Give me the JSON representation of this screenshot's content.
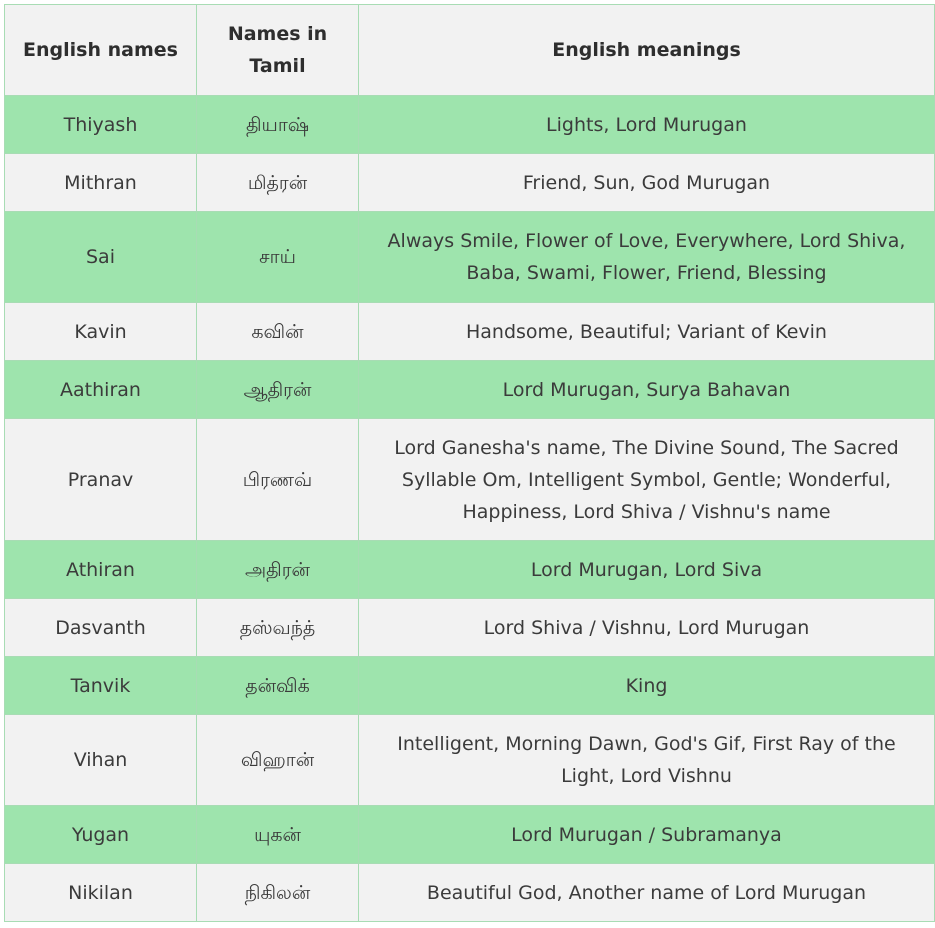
{
  "table": {
    "headers": [
      "English names",
      "Names in Tamil",
      "English meanings"
    ],
    "rows": [
      {
        "english": "Thiyash",
        "tamil": "தியாஷ்",
        "meaning": "Lights, Lord Murugan"
      },
      {
        "english": "Mithran",
        "tamil": "மித்ரன்",
        "meaning": "Friend, Sun, God  Murugan"
      },
      {
        "english": "Sai",
        "tamil": "சாய்",
        "meaning": "Always Smile, Flower of Love, Everywhere, Lord Shiva, Baba, Swami, Flower, Friend, Blessing"
      },
      {
        "english": "Kavin",
        "tamil": "கவின்",
        "meaning": "Handsome,  Beautiful; Variant of Kevin"
      },
      {
        "english": "Aathiran",
        "tamil": "ஆதிரன்",
        "meaning": "Lord Murugan, Surya Bahavan"
      },
      {
        "english": "Pranav",
        "tamil": "பிரணவ்",
        "meaning": "Lord Ganesha's name, The Divine Sound, The Sacred Syllable Om, Intelligent Symbol, Gentle; Wonderful, Happiness, Lord Shiva / Vishnu's name"
      },
      {
        "english": "Athiran",
        "tamil": "அதிரன்",
        "meaning": "Lord Murugan, Lord Siva"
      },
      {
        "english": "Dasvanth",
        "tamil": "தஸ்வந்த்",
        "meaning": "Lord Shiva / Vishnu, Lord Murugan"
      },
      {
        "english": "Tanvik",
        "tamil": "தன்விக்",
        "meaning": "King"
      },
      {
        "english": "Vihan",
        "tamil": "விஹான்",
        "meaning": "Intelligent, Morning Dawn, God's Gif,  First Ray of the Light, Lord Vishnu"
      },
      {
        "english": "Yugan",
        "tamil": "யுகன்",
        "meaning": "Lord Murugan / Subramanya"
      },
      {
        "english": "Nikilan",
        "tamil": "நிகிலன்",
        "meaning": "Beautiful God, Another name of Lord Murugan"
      }
    ],
    "colors": {
      "green_row": "#9ee4ad",
      "grey_row": "#f2f2f2",
      "border": "#a8dcb4"
    }
  }
}
